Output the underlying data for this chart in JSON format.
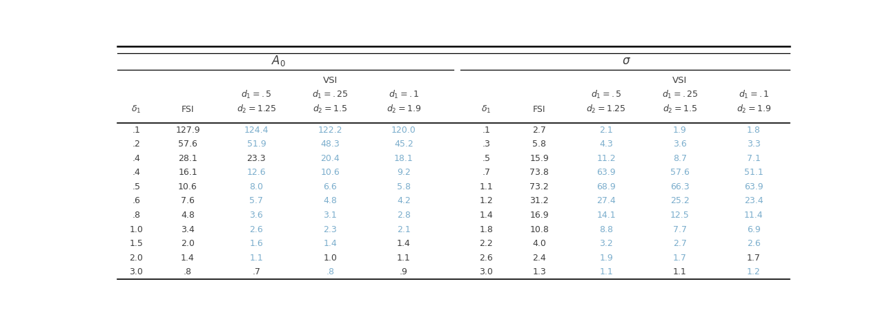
{
  "left_header": "A_0",
  "right_header": "σ",
  "left_data": [
    [
      ".1",
      "127.9",
      "124.4",
      "122.2",
      "120.0"
    ],
    [
      ".2",
      "57.6",
      "51.9",
      "48.3",
      "45.2"
    ],
    [
      ".4",
      "28.1",
      "23.3",
      "20.4",
      "18.1"
    ],
    [
      ".4",
      "16.1",
      "12.6",
      "10.6",
      "9.2"
    ],
    [
      ".5",
      "10.6",
      "8.0",
      "6.6",
      "5.8"
    ],
    [
      ".6",
      "7.6",
      "5.7",
      "4.8",
      "4.2"
    ],
    [
      ".8",
      "4.8",
      "3.6",
      "3.1",
      "2.8"
    ],
    [
      "1.0",
      "3.4",
      "2.6",
      "2.3",
      "2.1"
    ],
    [
      "1.5",
      "2.0",
      "1.6",
      "1.4",
      "1.4"
    ],
    [
      "2.0",
      "1.4",
      "1.1",
      "1.0",
      "1.1"
    ],
    [
      "3.0",
      ".8",
      ".7",
      ".8",
      ".9"
    ]
  ],
  "right_data": [
    [
      ".1",
      "2.7",
      "2.1",
      "1.9",
      "1.8"
    ],
    [
      ".3",
      "5.8",
      "4.3",
      "3.6",
      "3.3"
    ],
    [
      ".5",
      "15.9",
      "11.2",
      "8.7",
      "7.1"
    ],
    [
      ".7",
      "73.8",
      "63.9",
      "57.6",
      "51.1"
    ],
    [
      "1.1",
      "73.2",
      "68.9",
      "66.3",
      "63.9"
    ],
    [
      "1.2",
      "31.2",
      "27.4",
      "25.2",
      "23.4"
    ],
    [
      "1.4",
      "16.9",
      "14.1",
      "12.5",
      "11.4"
    ],
    [
      "1.8",
      "10.8",
      "8.8",
      "7.7",
      "6.9"
    ],
    [
      "2.2",
      "4.0",
      "3.2",
      "2.7",
      "2.6"
    ],
    [
      "2.6",
      "2.4",
      "1.9",
      "1.7",
      "1.7"
    ],
    [
      "3.0",
      "1.3",
      "1.1",
      "1.1",
      "1.2"
    ]
  ],
  "left_color_map": {
    "0_2": true,
    "0_3": true,
    "0_4": true,
    "1_2": true,
    "1_3": true,
    "1_4": true,
    "2_3": true,
    "2_4": true,
    "3_2": true,
    "3_3": true,
    "3_4": true,
    "4_2": true,
    "4_3": true,
    "4_4": true,
    "5_2": true,
    "5_3": true,
    "5_4": true,
    "6_2": true,
    "6_3": true,
    "6_4": true,
    "7_2": true,
    "7_3": true,
    "7_4": true,
    "8_2": true,
    "8_3": true,
    "9_2": true,
    "10_3": true
  },
  "right_color_map": {
    "0_2": true,
    "0_3": true,
    "0_4": true,
    "1_2": true,
    "1_3": true,
    "1_4": true,
    "2_2": true,
    "2_3": true,
    "2_4": true,
    "3_2": true,
    "3_3": true,
    "3_4": true,
    "4_2": true,
    "4_3": true,
    "4_4": true,
    "5_2": true,
    "5_3": true,
    "5_4": true,
    "6_2": true,
    "6_3": true,
    "6_4": true,
    "7_2": true,
    "7_3": true,
    "7_4": true,
    "8_2": true,
    "8_3": true,
    "8_4": true,
    "9_2": true,
    "9_3": true,
    "10_2": true,
    "10_4": true
  },
  "text_color_normal": "#3d3d3d",
  "text_color_blue": "#7aadcc",
  "figsize": [
    12.82,
    4.66
  ],
  "dpi": 100
}
